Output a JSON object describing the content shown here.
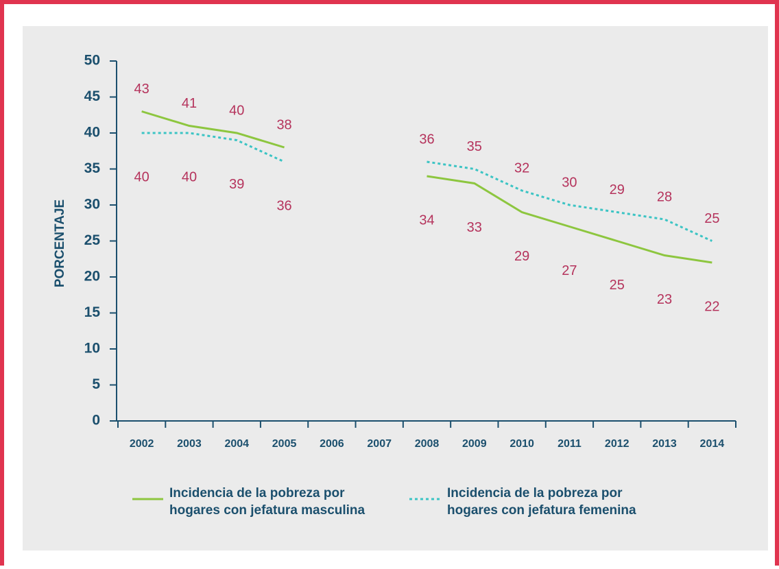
{
  "chart_data": {
    "type": "line",
    "y_axis_label": "PORCENTAJE",
    "categories": [
      "2002",
      "2003",
      "2004",
      "2005",
      "2006",
      "2007",
      "2008",
      "2009",
      "2010",
      "2011",
      "2012",
      "2013",
      "2014"
    ],
    "series": [
      {
        "name_lines": [
          "Incidencia de la pobreza por",
          "hogares con jefatura masculina"
        ],
        "color": "#8dc63f",
        "dash": false,
        "values": [
          43,
          41,
          40,
          38,
          null,
          null,
          34,
          33,
          29,
          27,
          25,
          23,
          22
        ]
      },
      {
        "name_lines": [
          "Incidencia de la pobreza por",
          "hogares con jefatura femenina"
        ],
        "color": "#3cc4c4",
        "dash": true,
        "values": [
          40,
          40,
          39,
          36,
          null,
          null,
          36,
          35,
          32,
          30,
          29,
          28,
          25
        ]
      }
    ],
    "ylim": [
      0,
      50
    ],
    "yticks": [
      0,
      5,
      10,
      15,
      20,
      25,
      30,
      35,
      40,
      45,
      50
    ]
  }
}
